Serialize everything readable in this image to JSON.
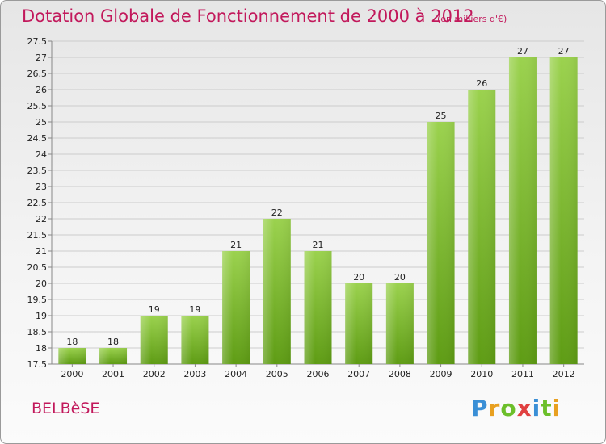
{
  "header": {
    "title": "Dotation Globale de Fonctionnement de 2000 à 2012",
    "subtitle": "(en milliers d'€)"
  },
  "footer": {
    "commune": "BELBèSE",
    "logo_letters": [
      "P",
      "r",
      "o",
      "x",
      "i",
      "t",
      "i"
    ]
  },
  "colors": {
    "bar_top": "#9bd24e",
    "bar_bottom": "#5e9c14",
    "title": "#c2185b",
    "grid": "#cccccc"
  },
  "chart_data": {
    "type": "bar",
    "title": "Dotation Globale de Fonctionnement de 2000 à 2012",
    "subtitle": "(en milliers d'€)",
    "categories": [
      "2000",
      "2001",
      "2002",
      "2003",
      "2004",
      "2005",
      "2006",
      "2007",
      "2008",
      "2009",
      "2010",
      "2011",
      "2012"
    ],
    "values": [
      18,
      18,
      19,
      19,
      21,
      22,
      21,
      20,
      20,
      25,
      26,
      27,
      27
    ],
    "ylim": [
      17.5,
      27.5
    ],
    "yticks": [
      "17.5",
      "18",
      "18.5",
      "19",
      "19.5",
      "20",
      "20.5",
      "21",
      "21.5",
      "22",
      "22.5",
      "23",
      "23.5",
      "24",
      "24.5",
      "25",
      "25.5",
      "26",
      "26.5",
      "27",
      "27.5"
    ],
    "grid": true,
    "xlabel": "",
    "ylabel": ""
  }
}
